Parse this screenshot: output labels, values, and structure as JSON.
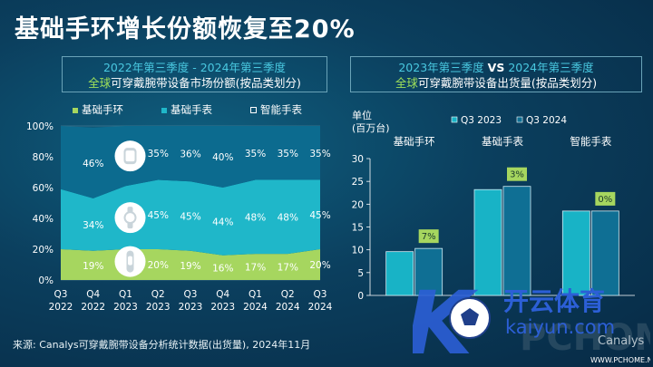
{
  "title": "基础手环增长份额恢复至20%",
  "left_panel": {
    "subtitle_line1": "2022年第三季度 - 2024年第三季度",
    "subtitle_line2_highlight": "全球",
    "subtitle_line2_rest": "可穿戴腕带设备市场份额(按品类划分)"
  },
  "right_panel": {
    "subtitle_line1_a": "2023年第三季度",
    "subtitle_line1_vs": "VS",
    "subtitle_line1_b": "2024年第三季度",
    "subtitle_line2_highlight": "全球",
    "subtitle_line2_rest": "可穿戴腕带设备出货量(按品类划分)",
    "unit_line1": "单位",
    "unit_line2": "(百万台)"
  },
  "source": "来源: Canalys可穿戴腕带设备分析统计数据(出货量), 2024年11月",
  "watermark": {
    "brand_cn": "开云体育",
    "brand_en": "kaiyun.com",
    "site": "WWW.PCHOME.NET",
    "faint": "Canalys",
    "letter": "K"
  },
  "colors": {
    "basic_band": "#a6d65f",
    "basic_watch": "#1fb7c9",
    "smartwatch": "#0c6b8f",
    "bar_2023": "#18b3c6",
    "bar_2024": "#0f6f94",
    "growth_label_bg": "#a6d65f",
    "title_text": "#ffffff"
  },
  "chart_data": [
    {
      "type": "area",
      "stacked": true,
      "categories": [
        "Q3 2022",
        "Q4 2022",
        "Q1 2023",
        "Q2 2023",
        "Q3 2023",
        "Q4 2023",
        "Q1 2024",
        "Q2 2024",
        "Q3 2024"
      ],
      "x_top": [
        "Q3",
        "Q4",
        "Q1",
        "Q2",
        "Q3",
        "Q4",
        "Q1",
        "Q2",
        "Q3"
      ],
      "x_bottom": [
        "2022",
        "2022",
        "2023",
        "2023",
        "2023",
        "2023",
        "2024",
        "2024",
        "2024"
      ],
      "series": [
        {
          "name": "基础手环",
          "values": [
            20,
            19,
            20,
            20,
            19,
            16,
            17,
            17,
            20
          ],
          "labels": [
            "",
            "19%",
            "",
            "20%",
            "19%",
            "16%",
            "17%",
            "17%",
            "20%"
          ]
        },
        {
          "name": "基础手表",
          "values": [
            39,
            34,
            41,
            45,
            45,
            44,
            48,
            48,
            45
          ],
          "labels": [
            "",
            "34%",
            "",
            "45%",
            "45%",
            "44%",
            "48%",
            "48%",
            "45%"
          ]
        },
        {
          "name": "智能手表",
          "values": [
            41,
            46,
            39,
            35,
            36,
            40,
            35,
            35,
            35
          ],
          "labels": [
            "",
            "46%",
            "",
            "35%",
            "36%",
            "40%",
            "35%",
            "35%",
            "35%"
          ]
        }
      ],
      "ylim": [
        0,
        100
      ],
      "yticks": [
        "0%",
        "20%",
        "40%",
        "60%",
        "80%",
        "100%"
      ],
      "legend": "top",
      "grid": true,
      "icons": [
        "smartwatch-icon",
        "basic-watch-icon",
        "basic-band-icon"
      ]
    },
    {
      "type": "bar",
      "categories": [
        "基础手环",
        "基础手表",
        "智能手表"
      ],
      "series": [
        {
          "name": "Q3 2023",
          "values": [
            9.6,
            23.2,
            18.5
          ]
        },
        {
          "name": "Q3 2024",
          "values": [
            10.3,
            23.9,
            18.5
          ]
        }
      ],
      "growth_labels": [
        "7%",
        "3%",
        "0%"
      ],
      "ylabel": "单位 (百万台)",
      "ylim": [
        0,
        30
      ],
      "yticks": [
        "0",
        "5",
        "10",
        "15",
        "20",
        "25",
        "30"
      ],
      "legend": "top",
      "grid": false
    }
  ]
}
